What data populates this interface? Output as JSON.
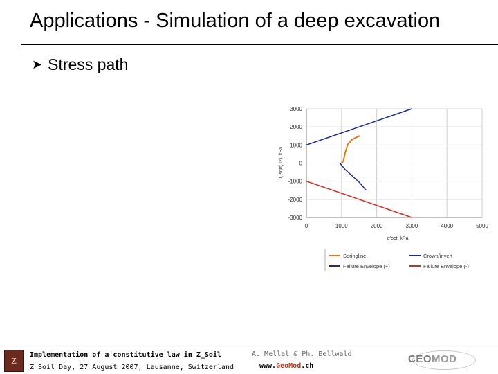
{
  "slide": {
    "title": "Applications - Simulation of a deep excavation",
    "bullet": "Stress path"
  },
  "footer": {
    "line1": "Implementation of a constitutive law in Z_Soil",
    "line2": "Z_Soil Day, 27 August 2007, Lausanne, Switzerland",
    "authors": "A. Mellal & Ph. Bellwald",
    "website_prefix": "www.",
    "website_geo": "Geo",
    "website_mod": "Mod",
    "website_suffix": ".ch",
    "logo_left_text": "Z",
    "logo_right_ceo": "CEO",
    "logo_right_mod": "MOD"
  },
  "chart_data": {
    "type": "line",
    "title": "",
    "xlabel": "σ'oct, kPa",
    "ylabel": "J, sqrt(J2), kPa",
    "xlim": [
      0,
      5000
    ],
    "ylim": [
      -3000,
      3000
    ],
    "xticks": [
      0,
      1000,
      2000,
      3000,
      4000,
      5000
    ],
    "yticks": [
      3000,
      2000,
      1000,
      0,
      -1000,
      -2000,
      -3000
    ],
    "xtick_labels": [
      "0",
      "1000",
      "2000",
      "3000",
      "4000",
      "5000"
    ],
    "ytick_labels": [
      "3000",
      "2000",
      "1000",
      "0",
      "-1000",
      "-2000",
      "-3000"
    ],
    "grid": true,
    "legend_position": "bottom",
    "series": [
      {
        "name": "Springline",
        "color": "#e07a1a",
        "x": [
          1000,
          1050,
          1100,
          1180,
          1300,
          1450,
          1520
        ],
        "y": [
          0,
          100,
          550,
          1050,
          1300,
          1450,
          1500
        ]
      },
      {
        "name": "Crown/invert",
        "color": "#1a2a9a",
        "x": [
          950,
          1100,
          1300,
          1500,
          1700
        ],
        "y": [
          0,
          -350,
          -700,
          -1050,
          -1500
        ]
      },
      {
        "name": "Failure Envelope (+)",
        "color": "#1a2a9a",
        "x": [
          0,
          3000
        ],
        "y": [
          1000,
          3000
        ]
      },
      {
        "name": "Failure Envelope (-)",
        "color": "#d62a1e",
        "x": [
          0,
          3000
        ],
        "y": [
          -1000,
          -3000
        ]
      }
    ]
  }
}
